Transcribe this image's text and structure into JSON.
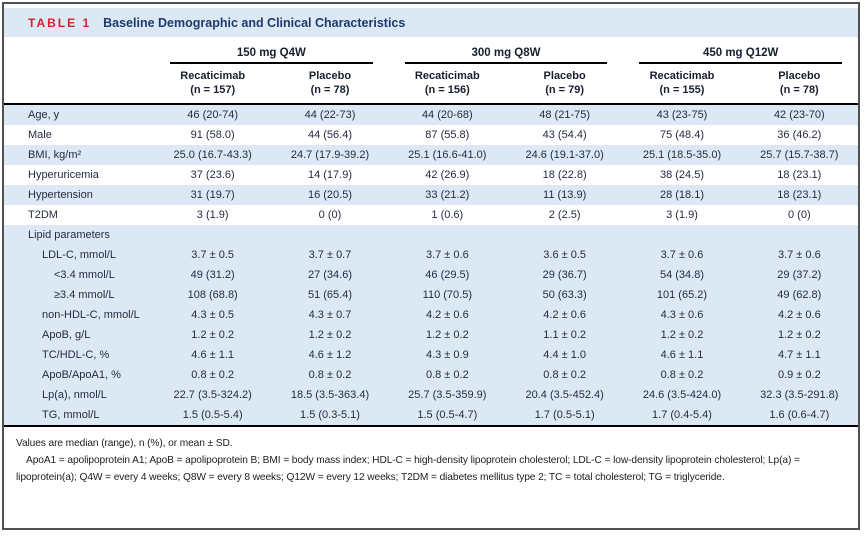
{
  "colors": {
    "accent_red": "#d2232e",
    "navy": "#1c3a6e",
    "stripe_blue": "#dce9f5",
    "rule_black": "#000000",
    "frame_gray": "#4f5052"
  },
  "table": {
    "label": "TABLE 1",
    "title": "Baseline Demographic and Clinical Characteristics",
    "groups": [
      "150 mg Q4W",
      "300 mg Q8W",
      "450 mg Q12W"
    ],
    "columns": [
      {
        "treatment": "Recaticimab",
        "n_label": "(n = 157)"
      },
      {
        "treatment": "Placebo",
        "n_label": "(n = 78)"
      },
      {
        "treatment": "Recaticimab",
        "n_label": "(n = 156)"
      },
      {
        "treatment": "Placebo",
        "n_label": "(n = 79)"
      },
      {
        "treatment": "Recaticimab",
        "n_label": "(n = 155)"
      },
      {
        "treatment": "Placebo",
        "n_label": "(n = 78)"
      }
    ],
    "rows": [
      {
        "label": "Age, y",
        "indent": 0,
        "shade": "blue",
        "section": false,
        "values": [
          "46 (20-74)",
          "44 (22-73)",
          "44 (20-68)",
          "48 (21-75)",
          "43 (23-75)",
          "42 (23-70)"
        ]
      },
      {
        "label": "Male",
        "indent": 0,
        "shade": "white",
        "section": false,
        "values": [
          "91 (58.0)",
          "44 (56.4)",
          "87 (55.8)",
          "43 (54.4)",
          "75 (48.4)",
          "36 (46.2)"
        ]
      },
      {
        "label": "BMI, kg/m²",
        "indent": 0,
        "shade": "blue",
        "section": false,
        "values": [
          "25.0 (16.7-43.3)",
          "24.7 (17.9-39.2)",
          "25.1 (16.6-41.0)",
          "24.6 (19.1-37.0)",
          "25.1 (18.5-35.0)",
          "25.7 (15.7-38.7)"
        ]
      },
      {
        "label": "Hyperuricemia",
        "indent": 0,
        "shade": "white",
        "section": false,
        "values": [
          "37 (23.6)",
          "14 (17.9)",
          "42 (26.9)",
          "18 (22.8)",
          "38 (24.5)",
          "18 (23.1)"
        ]
      },
      {
        "label": "Hypertension",
        "indent": 0,
        "shade": "blue",
        "section": false,
        "values": [
          "31 (19.7)",
          "16 (20.5)",
          "33 (21.2)",
          "11 (13.9)",
          "28 (18.1)",
          "18 (23.1)"
        ]
      },
      {
        "label": "T2DM",
        "indent": 0,
        "shade": "white",
        "section": false,
        "values": [
          "3 (1.9)",
          "0 (0)",
          "1 (0.6)",
          "2 (2.5)",
          "3 (1.9)",
          "0 (0)"
        ]
      },
      {
        "label": "Lipid parameters",
        "indent": 0,
        "shade": "blue",
        "section": true,
        "values": [
          "",
          "",
          "",
          "",
          "",
          ""
        ]
      },
      {
        "label": "LDL-C, mmol/L",
        "indent": 1,
        "shade": "blue",
        "section": false,
        "values": [
          "3.7 ± 0.5",
          "3.7 ± 0.7",
          "3.7 ± 0.6",
          "3.6 ± 0.5",
          "3.7 ± 0.6",
          "3.7 ± 0.6"
        ]
      },
      {
        "label": "<3.4 mmol/L",
        "indent": 2,
        "shade": "blue",
        "section": false,
        "values": [
          "49 (31.2)",
          "27 (34.6)",
          "46 (29.5)",
          "29 (36.7)",
          "54 (34.8)",
          "29 (37.2)"
        ]
      },
      {
        "label": "≥3.4 mmol/L",
        "indent": 2,
        "shade": "blue",
        "section": false,
        "values": [
          "108 (68.8)",
          "51 (65.4)",
          "110 (70.5)",
          "50 (63.3)",
          "101 (65.2)",
          "49 (62.8)"
        ]
      },
      {
        "label": "non-HDL-C, mmol/L",
        "indent": 1,
        "shade": "blue",
        "section": false,
        "values": [
          "4.3 ± 0.5",
          "4.3 ± 0.7",
          "4.2 ± 0.6",
          "4.2 ± 0.6",
          "4.3 ± 0.6",
          "4.2 ± 0.6"
        ]
      },
      {
        "label": "ApoB, g/L",
        "indent": 1,
        "shade": "blue",
        "section": false,
        "values": [
          "1.2 ± 0.2",
          "1.2 ± 0.2",
          "1.2 ± 0.2",
          "1.1 ± 0.2",
          "1.2 ± 0.2",
          "1.2 ± 0.2"
        ]
      },
      {
        "label": "TC/HDL-C, %",
        "indent": 1,
        "shade": "blue",
        "section": false,
        "values": [
          "4.6 ± 1.1",
          "4.6 ± 1.2",
          "4.3 ± 0.9",
          "4.4 ± 1.0",
          "4.6 ± 1.1",
          "4.7 ± 1.1"
        ]
      },
      {
        "label": "ApoB/ApoA1, %",
        "indent": 1,
        "shade": "blue",
        "section": false,
        "values": [
          "0.8 ± 0.2",
          "0.8 ± 0.2",
          "0.8 ± 0.2",
          "0.8 ± 0.2",
          "0.8 ± 0.2",
          "0.9 ± 0.2"
        ]
      },
      {
        "label": "Lp(a), nmol/L",
        "indent": 1,
        "shade": "blue",
        "section": false,
        "values": [
          "22.7 (3.5-324.2)",
          "18.5 (3.5-363.4)",
          "25.7 (3.5-359.9)",
          "20.4 (3.5-452.4)",
          "24.6 (3.5-424.0)",
          "32.3 (3.5-291.8)"
        ]
      },
      {
        "label": "TG, mmol/L",
        "indent": 1,
        "shade": "blue",
        "section": false,
        "values": [
          "1.5 (0.5-5.4)",
          "1.5 (0.3-5.1)",
          "1.5 (0.5-4.7)",
          "1.7 (0.5-5.1)",
          "1.7 (0.4-5.4)",
          "1.6 (0.6-4.7)"
        ]
      }
    ],
    "footnotes": [
      "Values are median (range), n (%), or mean ± SD.",
      "ApoA1 = apolipoprotein A1; ApoB = apolipoprotein B; BMI = body mass index; HDL-C = high-density lipoprotein cholesterol; LDL-C = low-density lipoprotein cholesterol; Lp(a) = lipoprotein(a); Q4W = every 4 weeks; Q8W = every 8 weeks; Q12W = every 12 weeks; T2DM = diabetes mellitus type 2; TC = total cholesterol; TG = triglyceride."
    ]
  }
}
